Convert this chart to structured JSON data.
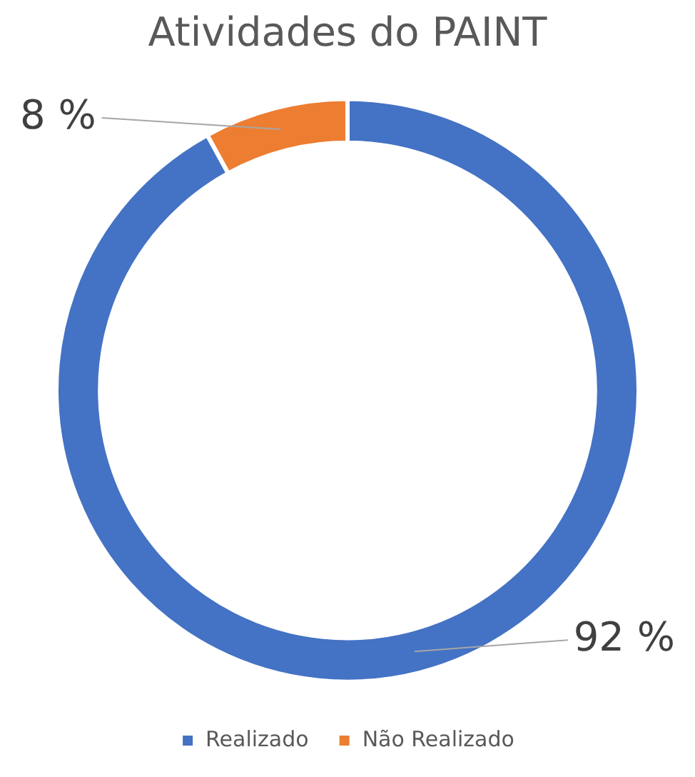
{
  "chart_data": {
    "type": "donut",
    "title": "Atividades do PAINT",
    "categories": [
      "Realizado",
      "Não Realizado"
    ],
    "values": [
      92,
      8
    ],
    "colors": [
      "#4472c4",
      "#ed7d31"
    ],
    "value_labels": [
      "92 %",
      "8 %"
    ],
    "legend": "bottom"
  }
}
